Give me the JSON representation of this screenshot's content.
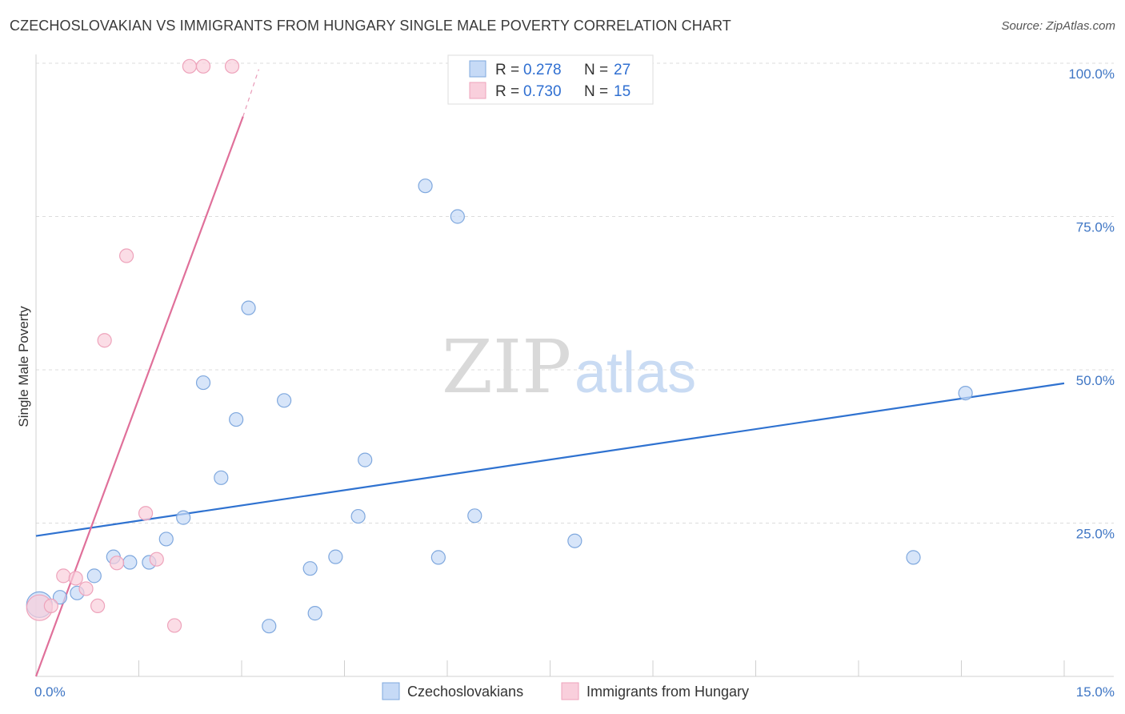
{
  "title": "CZECHOSLOVAKIAN VS IMMIGRANTS FROM HUNGARY SINGLE MALE POVERTY CORRELATION CHART",
  "source": "Source: ZipAtlas.com",
  "watermark": {
    "zip": "ZIP",
    "atlas": "atlas"
  },
  "colors": {
    "blue_fill": "#c6daf6",
    "blue_stroke": "#7fa8de",
    "blue_line": "#2f72d0",
    "pink_fill": "#f9cfdc",
    "pink_stroke": "#eea3bb",
    "pink_line": "#e0709a",
    "grid": "#dcdcdc",
    "axis_text": "#3f76c4"
  },
  "legend": {
    "items": [
      {
        "r_label": "R = ",
        "r_value": "0.278",
        "n_label": "N = ",
        "n_value": "27",
        "color": "blue"
      },
      {
        "r_label": "R = ",
        "r_value": "0.730",
        "n_label": "N = ",
        "n_value": "15",
        "color": "pink"
      }
    ]
  },
  "bottom_legend": [
    "Czechoslovakians",
    "Immigrants from Hungary"
  ],
  "chart_data": {
    "type": "scatter",
    "title": "CZECHOSLOVAKIAN VS IMMIGRANTS FROM HUNGARY SINGLE MALE POVERTY CORRELATION CHART",
    "xlabel": "",
    "ylabel": "Single Male Poverty",
    "xlim": [
      0,
      15
    ],
    "ylim": [
      0,
      100
    ],
    "x_tick_labels": [
      {
        "value": 0,
        "label": "0.0%"
      },
      {
        "value": 15,
        "label": "15.0%"
      }
    ],
    "y_tick_labels": [
      {
        "value": 25,
        "label": "25.0%"
      },
      {
        "value": 50,
        "label": "50.0%"
      },
      {
        "value": 75,
        "label": "75.0%"
      },
      {
        "value": 100,
        "label": "100.0%"
      }
    ],
    "series": [
      {
        "name": "Czechoslovakians",
        "color": "blue",
        "r": 0.278,
        "n": 27,
        "trend": {
          "x": [
            0,
            15
          ],
          "y": [
            22.9,
            47.8
          ]
        },
        "points": [
          {
            "x": 0.05,
            "y": 11.7,
            "big": true
          },
          {
            "x": 0.35,
            "y": 12.9
          },
          {
            "x": 0.6,
            "y": 13.6
          },
          {
            "x": 0.85,
            "y": 16.4
          },
          {
            "x": 1.13,
            "y": 19.5
          },
          {
            "x": 1.37,
            "y": 18.6
          },
          {
            "x": 1.65,
            "y": 18.6
          },
          {
            "x": 1.9,
            "y": 22.4
          },
          {
            "x": 2.15,
            "y": 25.9
          },
          {
            "x": 2.44,
            "y": 47.9
          },
          {
            "x": 2.7,
            "y": 32.4
          },
          {
            "x": 2.92,
            "y": 41.9
          },
          {
            "x": 3.1,
            "y": 60.1
          },
          {
            "x": 3.4,
            "y": 8.2
          },
          {
            "x": 3.62,
            "y": 45.0
          },
          {
            "x": 4.0,
            "y": 17.6
          },
          {
            "x": 4.07,
            "y": 10.3
          },
          {
            "x": 4.37,
            "y": 19.5
          },
          {
            "x": 4.7,
            "y": 26.1
          },
          {
            "x": 4.8,
            "y": 35.3
          },
          {
            "x": 5.68,
            "y": 80.0
          },
          {
            "x": 5.87,
            "y": 19.4
          },
          {
            "x": 6.15,
            "y": 75.0
          },
          {
            "x": 6.4,
            "y": 26.2
          },
          {
            "x": 7.86,
            "y": 22.1
          },
          {
            "x": 12.8,
            "y": 19.4
          },
          {
            "x": 13.56,
            "y": 46.2
          }
        ]
      },
      {
        "name": "Immigrants from Hungary",
        "color": "pink",
        "r": 0.73,
        "n": 15,
        "trend": {
          "x": [
            0,
            3.02
          ],
          "y": [
            0,
            91.3
          ]
        },
        "trend_dashed": {
          "x": [
            3.02,
            3.25
          ],
          "y": [
            91.3,
            99.0
          ]
        },
        "points": [
          {
            "x": 0.05,
            "y": 11.2,
            "big": true
          },
          {
            "x": 0.22,
            "y": 11.5
          },
          {
            "x": 0.4,
            "y": 16.4
          },
          {
            "x": 0.58,
            "y": 16.0
          },
          {
            "x": 0.73,
            "y": 14.3
          },
          {
            "x": 0.9,
            "y": 11.5
          },
          {
            "x": 1.0,
            "y": 54.8
          },
          {
            "x": 1.18,
            "y": 18.5
          },
          {
            "x": 1.32,
            "y": 68.6
          },
          {
            "x": 1.6,
            "y": 26.6
          },
          {
            "x": 1.76,
            "y": 19.1
          },
          {
            "x": 2.02,
            "y": 8.3
          },
          {
            "x": 2.24,
            "y": 99.5
          },
          {
            "x": 2.44,
            "y": 99.5
          },
          {
            "x": 2.86,
            "y": 99.5
          }
        ]
      }
    ]
  }
}
